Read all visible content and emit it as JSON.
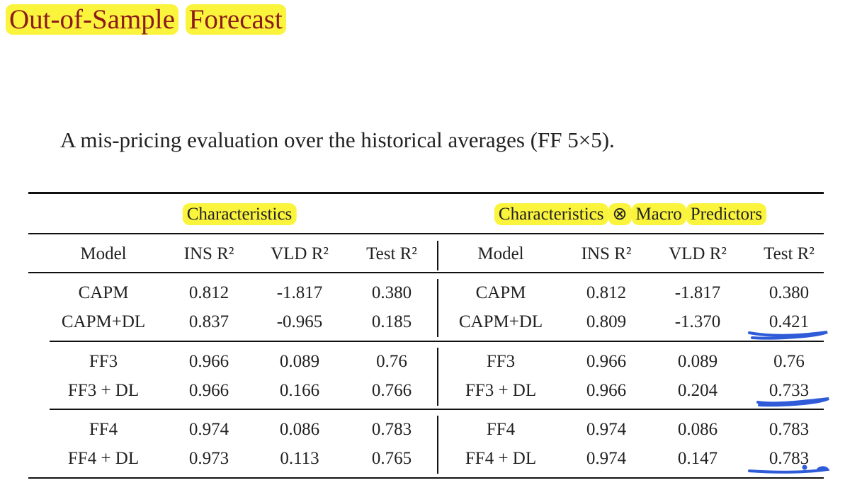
{
  "slide": {
    "title_words": [
      "Out-of-Sample",
      "Forecast"
    ],
    "subtitle": "A mis-pricing evaluation over the historical averages (FF 5×5)."
  },
  "table": {
    "groups": {
      "left": [
        "Characteristics"
      ],
      "right": [
        "Characteristics",
        "⊗",
        "Macro",
        "Predictors"
      ]
    },
    "headers": [
      "Model",
      "INS R²",
      "VLD R²",
      "Test R²",
      "Model",
      "INS R²",
      "VLD R²",
      "Test R²"
    ],
    "rows": [
      [
        "CAPM",
        "0.812",
        "-1.817",
        "0.380",
        "CAPM",
        "0.812",
        "-1.817",
        "0.380"
      ],
      [
        "CAPM+DL",
        "0.837",
        "-0.965",
        "0.185",
        "CAPM+DL",
        "0.809",
        "-1.370",
        "0.421"
      ],
      [
        "FF3",
        "0.966",
        "0.089",
        "0.76",
        "FF3",
        "0.966",
        "0.089",
        "0.76"
      ],
      [
        "FF3 + DL",
        "0.966",
        "0.166",
        "0.766",
        "FF3 + DL",
        "0.966",
        "0.204",
        "0.733"
      ],
      [
        "FF4",
        "0.974",
        "0.086",
        "0.783",
        "FF4",
        "0.974",
        "0.086",
        "0.783"
      ],
      [
        "FF4 + DL",
        "0.973",
        "0.113",
        "0.765",
        "FF4 + DL",
        "0.974",
        "0.147",
        "0.783"
      ]
    ]
  },
  "annotations": {
    "ink_color": "#2f5bd8",
    "highlight_color": "#fbf43c",
    "title_color": "#8b1a1a"
  }
}
